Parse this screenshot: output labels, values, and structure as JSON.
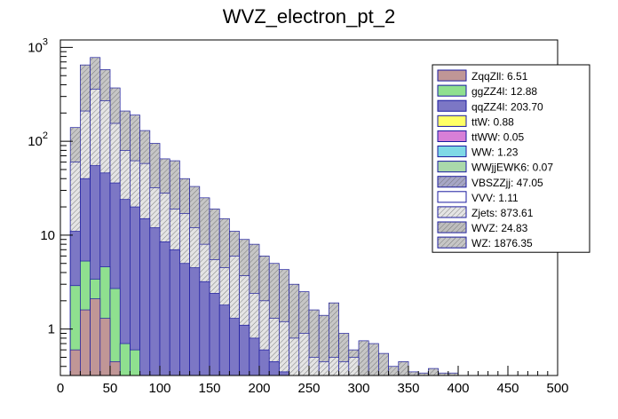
{
  "chart_data": {
    "type": "bar",
    "title": "WVZ_electron_pt_2",
    "xlabel": "",
    "ylabel": "",
    "xlim": [
      0,
      500
    ],
    "ylim": [
      0.32,
      1200
    ],
    "log_y": true,
    "stacked": true,
    "bin_width": 10,
    "x_ticks": [
      0,
      50,
      100,
      150,
      200,
      250,
      300,
      350,
      400,
      450,
      500
    ],
    "y_ticks": [
      {
        "value": 1,
        "label": "1"
      },
      {
        "value": 10,
        "label": "10"
      },
      {
        "value": 100,
        "label": "10",
        "exp": "2"
      },
      {
        "value": 1000,
        "label": "10",
        "exp": "3"
      }
    ],
    "legend_position": "top-right",
    "legend_entries": [
      {
        "label": "ZqqZll: 6.51",
        "color": "#c09696",
        "hatch": false
      },
      {
        "label": "ggZZ4l: 12.88",
        "color": "#8fe08f",
        "hatch": false
      },
      {
        "label": "qqZZ4l: 203.70",
        "color": "#7c77c5",
        "hatch": false
      },
      {
        "label": "ttW: 0.88",
        "color": "#ffff66",
        "hatch": false
      },
      {
        "label": "ttWW: 0.05",
        "color": "#d77fd7",
        "hatch": false
      },
      {
        "label": "WW: 1.23",
        "color": "#7fd9e6",
        "hatch": false
      },
      {
        "label": "WWjjEWK6: 0.07",
        "color": "#aad9aa",
        "hatch": false
      },
      {
        "label": "VBSZZjj: 47.05",
        "color": "#a6a6c6",
        "hatch": true
      },
      {
        "label": "VVV: 1.11",
        "color": "#ffffff",
        "hatch": false
      },
      {
        "label": "Zjets: 873.61",
        "color": "#e4e4e4",
        "hatch": true
      },
      {
        "label": "WVZ: 24.83",
        "color": "#bdbdbd",
        "hatch": true
      },
      {
        "label": "WZ: 1876.35",
        "color": "#c6c6c6",
        "hatch": true
      }
    ],
    "series": [
      {
        "name": "ZqqZll",
        "color": "#c09696",
        "x": [
          15,
          25,
          35,
          45,
          55
        ],
        "values": [
          0.6,
          1.6,
          2.1,
          1.3,
          0.45
        ]
      },
      {
        "name": "ggZZ4l",
        "color": "#8fe08f",
        "x": [
          15,
          25,
          35,
          45,
          55,
          65,
          75
        ],
        "values": [
          2.9,
          5.3,
          3.4,
          4.6,
          2.7,
          0.7,
          0.6
        ]
      },
      {
        "name": "qqZZ4l",
        "color": "#7c77c5",
        "x": [
          15,
          25,
          35,
          45,
          55,
          65,
          75,
          85,
          95,
          105,
          115,
          125,
          135,
          145,
          155,
          165,
          175,
          185,
          195,
          205,
          215,
          225,
          235
        ],
        "values": [
          11,
          40,
          55,
          46,
          36,
          24,
          20,
          15,
          12,
          8.5,
          7,
          5,
          4.5,
          3.2,
          2.4,
          1.8,
          1.3,
          1.1,
          0.8,
          0.6,
          0.45,
          0.35,
          0.3
        ]
      },
      {
        "name": "Zjets_stack",
        "color": "#e4e4e4",
        "x": [
          15,
          25,
          35,
          45,
          55,
          65,
          75,
          85,
          95,
          105,
          115,
          125,
          135,
          145,
          155,
          165,
          175,
          185,
          195,
          205,
          215,
          225,
          235,
          245,
          255,
          265,
          275,
          285,
          295
        ],
        "values": [
          60,
          210,
          360,
          270,
          155,
          80,
          62,
          58,
          32,
          28,
          19,
          17,
          12,
          8,
          5.5,
          4.5,
          6,
          3.7,
          2.4,
          2,
          1.3,
          1.2,
          0.8,
          0.9,
          0.5,
          0.45,
          0.5,
          0.45,
          0.5
        ]
      },
      {
        "name": "WZ_stack",
        "color": "#c6c6c6",
        "x": [
          15,
          25,
          35,
          45,
          55,
          65,
          75,
          85,
          95,
          105,
          115,
          125,
          135,
          145,
          155,
          165,
          175,
          185,
          195,
          205,
          215,
          225,
          235,
          245,
          255,
          265,
          275,
          285,
          295,
          305,
          315,
          325,
          335,
          345,
          355,
          365,
          375,
          385,
          395
        ],
        "values": [
          140,
          650,
          780,
          580,
          370,
          210,
          190,
          130,
          95,
          65,
          62,
          40,
          33,
          25,
          19,
          15,
          11,
          9,
          8,
          6,
          5,
          4.3,
          3,
          2.5,
          1.6,
          1.4,
          1.9,
          0.9,
          0.6,
          0.75,
          0.7,
          0.55,
          0.4,
          0.45,
          0.35,
          0.34,
          0.38,
          0.34,
          0.34
        ]
      }
    ]
  }
}
